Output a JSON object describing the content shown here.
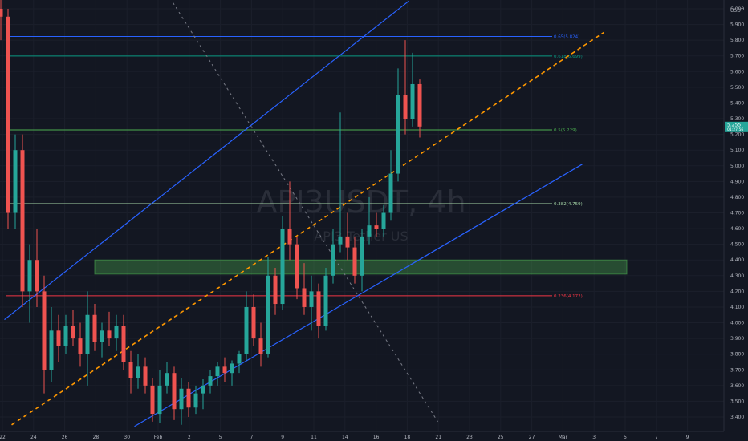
{
  "chart_data": {
    "type": "candlestick",
    "symbol_watermark": "API3USDT, 4h",
    "watermark_sub": "API3 Tether US",
    "currency": "USDT",
    "theme": {
      "background": "#131722",
      "up": "#26a69a",
      "down": "#ef5350",
      "axis_text": "#b2b5be"
    },
    "y_axis": {
      "min": 3.34,
      "max": 6.0,
      "ticks": [
        "6.000",
        "5.900",
        "5.800",
        "5.700",
        "5.600",
        "5.500",
        "5.400",
        "5.300",
        "5.200",
        "5.100",
        "5.000",
        "4.900",
        "4.800",
        "4.700",
        "4.600",
        "4.500",
        "4.400",
        "4.300",
        "4.200",
        "4.100",
        "4.000",
        "3.900",
        "3.800",
        "3.700",
        "3.600",
        "3.500",
        "3.400"
      ]
    },
    "x_axis": {
      "ticks": [
        "22",
        "24",
        "26",
        "28",
        "30",
        "Feb",
        "2",
        "5",
        "7",
        "9",
        "11",
        "14",
        "16",
        "18",
        "21",
        "23",
        "25",
        "27",
        "Mar",
        "3",
        "5",
        "7",
        "9"
      ]
    },
    "current_price": {
      "value": 5.25,
      "label": "5.255",
      "sub": "01:27:56",
      "color": "#26a69a"
    },
    "fib_levels": [
      {
        "label": "0.65(5.824)",
        "value": 5.824,
        "color": "#2962ff"
      },
      {
        "label": "0.618(5.699)",
        "value": 5.699,
        "color": "#089981"
      },
      {
        "label": "0.5(5.229)",
        "value": 5.229,
        "color": "#4caf50"
      },
      {
        "label": "0.382(4.759)",
        "value": 4.759,
        "color": "#a5d6a7"
      },
      {
        "label": "0.236(4.172)",
        "value": 4.172,
        "color": "#f23645"
      }
    ],
    "zone": {
      "from": 4.31,
      "to": 4.4,
      "color": "#4caf50"
    },
    "channel": {
      "upper": [
        [
          0.5,
          4.02
        ],
        [
          56.5,
          6.05
        ]
      ],
      "lower": [
        [
          18.5,
          3.34
        ],
        [
          80.5,
          5.01
        ]
      ],
      "mid_dashed": [
        [
          1.5,
          3.35
        ],
        [
          83.5,
          5.85
        ]
      ]
    },
    "diagonal_dotted": [
      [
        23,
        6.1
      ],
      [
        60.5,
        3.37
      ]
    ],
    "candles": [
      [
        6.0,
        6.12,
        5.8,
        5.95
      ],
      [
        5.95,
        6.0,
        4.6,
        4.7
      ],
      [
        4.7,
        5.2,
        4.6,
        5.1
      ],
      [
        5.1,
        5.2,
        4.1,
        4.2
      ],
      [
        4.2,
        4.5,
        4.0,
        4.4
      ],
      [
        4.4,
        4.6,
        4.1,
        4.2
      ],
      [
        4.2,
        4.3,
        3.55,
        3.7
      ],
      [
        3.7,
        4.1,
        3.62,
        3.95
      ],
      [
        3.95,
        4.05,
        3.75,
        3.85
      ],
      [
        3.85,
        4.05,
        3.8,
        3.98
      ],
      [
        3.98,
        4.08,
        3.85,
        3.9
      ],
      [
        3.9,
        4.0,
        3.72,
        3.8
      ],
      [
        3.8,
        4.2,
        3.6,
        4.05
      ],
      [
        4.05,
        4.12,
        3.82,
        3.88
      ],
      [
        3.88,
        4.0,
        3.78,
        3.95
      ],
      [
        3.95,
        4.07,
        3.85,
        3.9
      ],
      [
        3.9,
        4.05,
        3.82,
        3.98
      ],
      [
        3.98,
        4.05,
        3.7,
        3.75
      ],
      [
        3.75,
        3.82,
        3.55,
        3.65
      ],
      [
        3.65,
        3.8,
        3.58,
        3.72
      ],
      [
        3.72,
        3.78,
        3.55,
        3.6
      ],
      [
        3.6,
        3.65,
        3.37,
        3.42
      ],
      [
        3.42,
        3.7,
        3.36,
        3.6
      ],
      [
        3.6,
        3.75,
        3.55,
        3.68
      ],
      [
        3.68,
        3.72,
        3.38,
        3.45
      ],
      [
        3.45,
        3.65,
        3.35,
        3.58
      ],
      [
        3.58,
        3.62,
        3.4,
        3.46
      ],
      [
        3.46,
        3.6,
        3.42,
        3.55
      ],
      [
        3.55,
        3.64,
        3.45,
        3.6
      ],
      [
        3.6,
        3.7,
        3.55,
        3.66
      ],
      [
        3.66,
        3.75,
        3.6,
        3.72
      ],
      [
        3.72,
        3.78,
        3.62,
        3.68
      ],
      [
        3.68,
        3.76,
        3.6,
        3.74
      ],
      [
        3.74,
        3.82,
        3.68,
        3.8
      ],
      [
        3.8,
        4.2,
        3.76,
        4.1
      ],
      [
        4.1,
        4.18,
        3.85,
        3.9
      ],
      [
        3.9,
        4.0,
        3.72,
        3.8
      ],
      [
        3.8,
        4.42,
        3.78,
        4.3
      ],
      [
        4.3,
        4.35,
        4.05,
        4.12
      ],
      [
        4.12,
        4.68,
        4.08,
        4.6
      ],
      [
        4.6,
        4.9,
        4.4,
        4.5
      ],
      [
        4.5,
        4.55,
        4.15,
        4.22
      ],
      [
        4.22,
        4.38,
        4.05,
        4.1
      ],
      [
        4.1,
        4.3,
        3.95,
        4.2
      ],
      [
        4.2,
        4.25,
        3.9,
        3.98
      ],
      [
        3.98,
        4.35,
        3.95,
        4.3
      ],
      [
        4.3,
        4.6,
        4.25,
        4.5
      ],
      [
        4.5,
        5.34,
        4.45,
        4.55
      ],
      [
        4.55,
        4.7,
        4.4,
        4.48
      ],
      [
        4.48,
        4.55,
        4.25,
        4.3
      ],
      [
        4.3,
        4.6,
        4.2,
        4.55
      ],
      [
        4.55,
        4.8,
        4.5,
        4.62
      ],
      [
        4.62,
        4.7,
        4.55,
        4.6
      ],
      [
        4.6,
        4.75,
        4.55,
        4.7
      ],
      [
        4.7,
        5.1,
        4.65,
        4.95
      ],
      [
        4.95,
        5.62,
        4.9,
        5.45
      ],
      [
        5.45,
        5.8,
        5.2,
        5.3
      ],
      [
        5.3,
        5.72,
        5.25,
        5.52
      ],
      [
        5.52,
        5.55,
        5.18,
        5.25
      ]
    ]
  }
}
